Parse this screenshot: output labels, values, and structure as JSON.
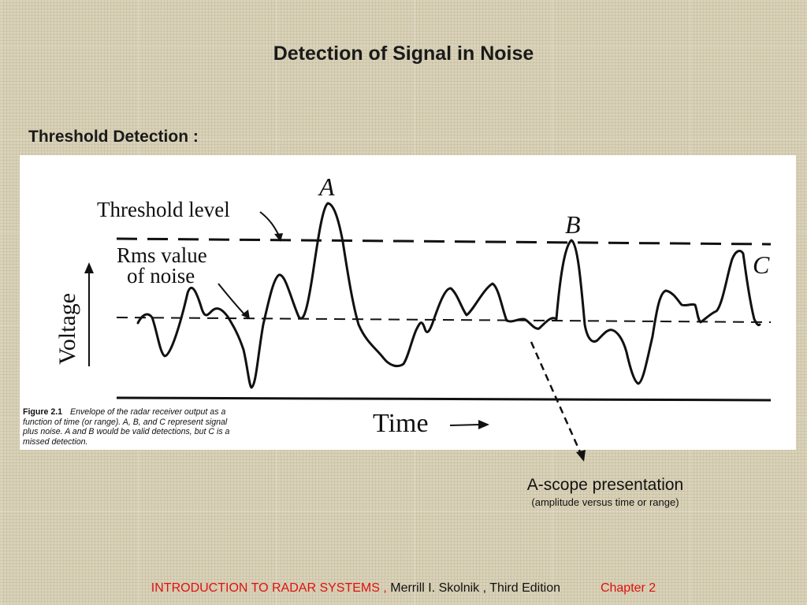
{
  "slide": {
    "title": "Detection of Signal in Noise",
    "subheading": "Threshold Detection :"
  },
  "figure": {
    "labels": {
      "threshold_line1": "Threshold level",
      "rms_line1": "Rms value",
      "rms_line2": "of noise",
      "voltage": "Voltage",
      "time": "Time",
      "peak_a": "A",
      "peak_b": "B",
      "peak_c": "C"
    },
    "caption": {
      "number": "Figure 2.1",
      "text": "Envelope of the radar receiver output as a function of time (or range). A, B, and C represent signal plus noise. A and B would be valid detections, but C is a missed detection."
    }
  },
  "annotation": {
    "title": "A-scope presentation",
    "subtitle": "(amplitude versus time or range)"
  },
  "footer": {
    "book": "INTRODUCTION  TO  RADAR  SYSTEMS ,",
    "author": "Merrill I. Skolnik , Third Edition",
    "chapter": "Chapter 2"
  }
}
